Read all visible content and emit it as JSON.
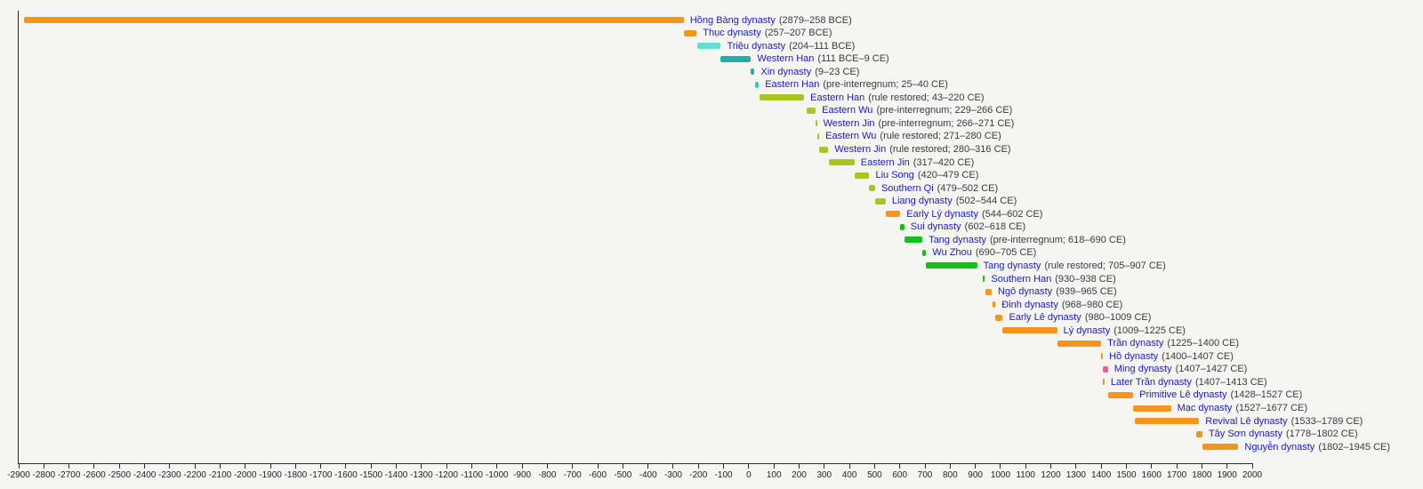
{
  "chart_data": {
    "type": "timeline",
    "description": "Timeline of Vietnamese and Chinese dynasties",
    "x_axis": {
      "min": -2900,
      "max": 2000,
      "tick_interval": 100,
      "tick_labels": [
        "-2900",
        "-2800",
        "-2700",
        "-2600",
        "-2500",
        "-2400",
        "-2300",
        "-2200",
        "-2100",
        "-2000",
        "-1900",
        "-1800",
        "-1700",
        "-1600",
        "-1500",
        "-1400",
        "-1300",
        "-1200",
        "-1100",
        "-1000",
        "-900",
        "-800",
        "-700",
        "-600",
        "-500",
        "-400",
        "-300",
        "-200",
        "-100",
        "0",
        "100",
        "200",
        "300",
        "400",
        "500",
        "600",
        "700",
        "800",
        "900",
        "1000",
        "1100",
        "1200",
        "1300",
        "1400",
        "1500",
        "1600",
        "1700",
        "1800",
        "1900",
        "2000"
      ]
    },
    "palette": {
      "orange": "#F7941D",
      "cyan": "#63DFDA",
      "teal": "#21AFA8",
      "teal_light": "#3AC6BF",
      "yellowgreen": "#ACC420",
      "green": "#10C212",
      "pink": "#EE5C9C"
    },
    "rows": [
      {
        "name": "Hồng Bàng dynasty",
        "detail": "(2879–258 BCE)",
        "start": -2879,
        "end": -258,
        "color": "orange"
      },
      {
        "name": "Thục dynasty",
        "detail": "(257–207 BCE)",
        "start": -257,
        "end": -207,
        "color": "orange"
      },
      {
        "name": "Triệu dynasty",
        "detail": "(204–111 BCE)",
        "start": -204,
        "end": -111,
        "color": "cyan"
      },
      {
        "name": "Western Han",
        "detail": "(111 BCE–9 CE)",
        "start": -111,
        "end": 9,
        "color": "teal"
      },
      {
        "name": "Xin dynasty",
        "detail": "(9–23 CE)",
        "start": 9,
        "end": 23,
        "color": "teal"
      },
      {
        "name": "Eastern Han",
        "detail": "(pre-interregnum; 25–40 CE)",
        "start": 25,
        "end": 40,
        "color": "teal_light"
      },
      {
        "name": "Eastern Han",
        "detail": "(rule restored; 43–220 CE)",
        "start": 43,
        "end": 220,
        "color": "yellowgreen"
      },
      {
        "name": "Eastern Wu",
        "detail": "(pre-interregnum; 229–266 CE)",
        "start": 229,
        "end": 266,
        "color": "yellowgreen"
      },
      {
        "name": "Western Jin",
        "detail": "(pre-interregnum; 266–271 CE)",
        "start": 266,
        "end": 271,
        "color": "yellowgreen"
      },
      {
        "name": "Eastern Wu",
        "detail": "(rule restored; 271–280 CE)",
        "start": 271,
        "end": 280,
        "color": "yellowgreen"
      },
      {
        "name": "Western Jin",
        "detail": "(rule restored; 280–316 CE)",
        "start": 280,
        "end": 316,
        "color": "yellowgreen"
      },
      {
        "name": "Eastern Jin",
        "detail": "(317–420 CE)",
        "start": 317,
        "end": 420,
        "color": "yellowgreen"
      },
      {
        "name": "Liu Song",
        "detail": "(420–479 CE)",
        "start": 420,
        "end": 479,
        "color": "yellowgreen"
      },
      {
        "name": "Southern Qi",
        "detail": "(479–502 CE)",
        "start": 479,
        "end": 502,
        "color": "yellowgreen"
      },
      {
        "name": "Liang dynasty",
        "detail": "(502–544 CE)",
        "start": 502,
        "end": 544,
        "color": "yellowgreen"
      },
      {
        "name": "Early Lý dynasty",
        "detail": "(544–602 CE)",
        "start": 544,
        "end": 602,
        "color": "orange"
      },
      {
        "name": "Sui dynasty",
        "detail": "(602–618 CE)",
        "start": 602,
        "end": 618,
        "color": "green"
      },
      {
        "name": "Tang dynasty",
        "detail": "(pre-interregnum; 618–690 CE)",
        "start": 618,
        "end": 690,
        "color": "green"
      },
      {
        "name": "Wu Zhou",
        "detail": "(690–705 CE)",
        "start": 690,
        "end": 705,
        "color": "green"
      },
      {
        "name": "Tang dynasty",
        "detail": "(rule restored; 705–907 CE)",
        "start": 705,
        "end": 907,
        "color": "green"
      },
      {
        "name": "Southern Han",
        "detail": "(930–938 CE)",
        "start": 930,
        "end": 938,
        "color": "green"
      },
      {
        "name": "Ngô dynasty",
        "detail": "(939–965 CE)",
        "start": 939,
        "end": 965,
        "color": "orange"
      },
      {
        "name": "Đinh dynasty",
        "detail": "(968–980 CE)",
        "start": 968,
        "end": 980,
        "color": "orange"
      },
      {
        "name": "Early Lê dynasty",
        "detail": "(980–1009 CE)",
        "start": 980,
        "end": 1009,
        "color": "orange"
      },
      {
        "name": "Lý dynasty",
        "detail": "(1009–1225 CE)",
        "start": 1009,
        "end": 1225,
        "color": "orange"
      },
      {
        "name": "Trần dynasty",
        "detail": "(1225–1400 CE)",
        "start": 1225,
        "end": 1400,
        "color": "orange"
      },
      {
        "name": "Hồ dynasty",
        "detail": "(1400–1407 CE)",
        "start": 1400,
        "end": 1407,
        "color": "orange"
      },
      {
        "name": "Ming dynasty",
        "detail": "(1407–1427 CE)",
        "start": 1407,
        "end": 1427,
        "color": "pink"
      },
      {
        "name": "Later Trần dynasty",
        "detail": "(1407–1413 CE)",
        "start": 1407,
        "end": 1413,
        "color": "orange"
      },
      {
        "name": "Primitive Lê dynasty",
        "detail": "(1428–1527 CE)",
        "start": 1428,
        "end": 1527,
        "color": "orange"
      },
      {
        "name": "Mạc dynasty",
        "detail": "(1527–1677 CE)",
        "start": 1527,
        "end": 1677,
        "color": "orange"
      },
      {
        "name": "Revival Lê dynasty",
        "detail": "(1533–1789 CE)",
        "start": 1533,
        "end": 1789,
        "color": "orange"
      },
      {
        "name": "Tây Sơn dynasty",
        "detail": "(1778–1802 CE)",
        "start": 1778,
        "end": 1802,
        "color": "orange"
      },
      {
        "name": "Nguyễn dynasty",
        "detail": "(1802–1945 CE)",
        "start": 1802,
        "end": 1945,
        "color": "orange"
      }
    ]
  },
  "styles": {
    "background": "#f5f5f2",
    "name_color": "#1A1ACD",
    "detail_color": "#3A3A3A",
    "axis_color": "#2B2B2B"
  }
}
